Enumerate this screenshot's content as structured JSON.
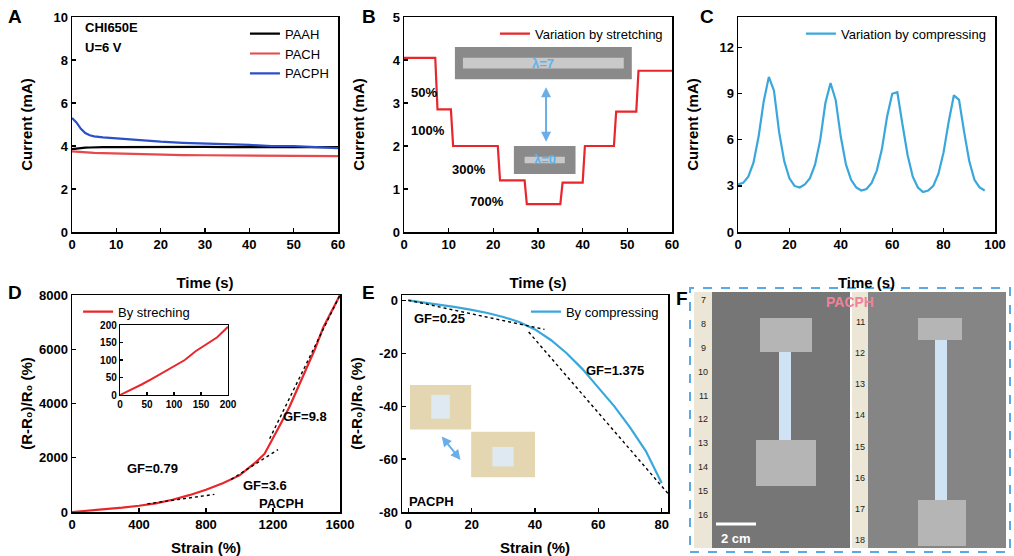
{
  "chart_data": [
    {
      "label": "A",
      "type": "line",
      "x_label": "Time (s)",
      "y_label": "Current (mA)",
      "annotations": [
        "CHI650E",
        "U=6 V"
      ],
      "x": [
        0,
        1,
        2,
        3,
        4,
        5,
        7,
        10,
        15,
        20,
        25,
        30,
        35,
        40,
        45,
        50,
        55,
        60
      ],
      "series": [
        {
          "name": "PAAH",
          "color": "#000000",
          "line_style": "solid",
          "values": [
            3.85,
            3.88,
            3.9,
            3.92,
            3.93,
            3.94,
            3.95,
            3.95,
            3.96,
            3.96,
            3.96,
            3.96,
            3.95,
            3.95,
            3.95,
            3.95,
            3.95,
            3.95
          ]
        },
        {
          "name": "PACH",
          "color": "#e8474b",
          "line_style": "solid",
          "values": [
            3.75,
            3.73,
            3.72,
            3.7,
            3.69,
            3.68,
            3.67,
            3.65,
            3.62,
            3.6,
            3.58,
            3.57,
            3.56,
            3.55,
            3.55,
            3.54,
            3.54,
            3.53
          ]
        },
        {
          "name": "PACPH",
          "color": "#2a4fc9",
          "line_style": "solid",
          "values": [
            5.3,
            5.1,
            4.8,
            4.6,
            4.5,
            4.45,
            4.4,
            4.35,
            4.25,
            4.2,
            4.15,
            4.12,
            4.1,
            4.05,
            4.0,
            4.0,
            3.95,
            3.9
          ]
        }
      ],
      "xlim": [
        0,
        60
      ],
      "xticks": [
        0,
        10,
        20,
        30,
        40,
        50,
        60
      ],
      "ylim": [
        0,
        10
      ],
      "yticks": [
        0,
        2,
        4,
        6,
        8,
        10
      ],
      "legend": "upper right",
      "grid": false
    },
    {
      "label": "B",
      "type": "line",
      "x_label": "Time (s)",
      "y_label": "Current (mA)",
      "annotations": [
        "50%",
        "100%",
        "300%",
        "700%"
      ],
      "inset_texts": [
        "λ=7",
        "λ=0"
      ],
      "x": [
        0,
        7,
        7.5,
        10.5,
        11,
        21,
        21.5,
        27,
        27.5,
        35,
        35.5,
        40,
        40.5,
        47,
        47.5,
        52,
        52.5,
        60
      ],
      "series": [
        {
          "name": "Variation by stretching",
          "color": "#e8262b",
          "line_style": "solid",
          "values": [
            4.05,
            4.05,
            2.85,
            2.85,
            2.0,
            2.0,
            1.2,
            1.2,
            0.65,
            0.65,
            1.15,
            1.15,
            2.0,
            2.0,
            2.8,
            2.8,
            3.75,
            3.75
          ]
        }
      ],
      "xlim": [
        0,
        60
      ],
      "xticks": [
        0,
        10,
        20,
        30,
        40,
        50,
        60
      ],
      "ylim": [
        0,
        5
      ],
      "yticks": [
        0,
        1,
        2,
        3,
        4,
        5
      ],
      "legend": "upper right",
      "grid": false
    },
    {
      "label": "C",
      "type": "line",
      "x_label": "Time (s)",
      "y_label": "Current (mA)",
      "x": [
        0,
        2,
        4,
        6,
        8,
        10,
        12,
        14,
        16,
        18,
        20,
        22,
        24,
        26,
        28,
        30,
        32,
        34,
        36,
        38,
        40,
        42,
        44,
        46,
        48,
        50,
        52,
        54,
        56,
        58,
        60,
        62,
        64,
        66,
        68,
        70,
        72,
        74,
        76,
        78,
        80,
        82,
        84,
        86,
        88,
        90,
        92,
        94,
        96
      ],
      "series": [
        {
          "name": "Variation by compressing",
          "color": "#3aa7dc",
          "line_style": "solid",
          "values": [
            3.1,
            3.2,
            3.6,
            4.5,
            6.2,
            8.5,
            10.1,
            9.2,
            6.5,
            4.6,
            3.5,
            3.0,
            2.9,
            3.1,
            3.5,
            4.4,
            6.0,
            8.4,
            9.7,
            8.6,
            6.2,
            4.4,
            3.4,
            2.9,
            2.7,
            2.8,
            3.2,
            4.0,
            5.4,
            7.5,
            9.0,
            9.1,
            7.0,
            5.0,
            3.6,
            2.9,
            2.6,
            2.7,
            3.0,
            3.8,
            5.2,
            7.2,
            8.9,
            8.6,
            6.5,
            4.6,
            3.4,
            2.9,
            2.7
          ]
        }
      ],
      "xlim": [
        0,
        100
      ],
      "xticks": [
        0,
        20,
        40,
        60,
        80,
        100
      ],
      "ylim": [
        0,
        14
      ],
      "yticks": [
        0,
        3,
        6,
        9,
        12
      ],
      "legend": "upper right",
      "grid": false
    },
    {
      "label": "D",
      "type": "line",
      "x_label": "Strain (%)",
      "y_label": "(R-R₀)/R₀ (%)",
      "annotations": [
        "GF=0.79",
        "GF=3.6",
        "GF=9.8",
        "PACPH"
      ],
      "x": [
        0,
        50,
        100,
        150,
        200,
        300,
        400,
        500,
        600,
        700,
        800,
        900,
        1000,
        1100,
        1150,
        1200,
        1250,
        1300,
        1350,
        1400,
        1450,
        1500,
        1550,
        1600
      ],
      "series": [
        {
          "name": "By streching",
          "color": "#e8262b",
          "line_style": "solid",
          "values": [
            0,
            25,
            55,
            85,
            110,
            160,
            230,
            320,
            450,
            620,
            820,
            1060,
            1350,
            1850,
            2150,
            2700,
            3300,
            3900,
            4600,
            5300,
            6000,
            6800,
            7400,
            8000
          ]
        },
        {
          "x": [
            450,
            850
          ],
          "values": [
            300,
            650
          ],
          "color": "#000000",
          "line_style": "dotted"
        },
        {
          "x": [
            950,
            1230
          ],
          "values": [
            1200,
            2300
          ],
          "color": "#000000",
          "line_style": "dotted"
        },
        {
          "x": [
            1180,
            1600
          ],
          "values": [
            2700,
            8000
          ],
          "color": "#000000",
          "line_style": "dotted"
        }
      ],
      "xlim": [
        0,
        1600
      ],
      "xticks": [
        0,
        400,
        800,
        1200,
        1600
      ],
      "ylim": [
        0,
        8000
      ],
      "yticks": [
        0,
        2000,
        4000,
        6000,
        8000
      ],
      "legend": "upper left",
      "grid": false,
      "inset": {
        "type": "line",
        "color": "#e8262b",
        "x": [
          0,
          20,
          40,
          60,
          80,
          100,
          120,
          140,
          160,
          180,
          200
        ],
        "values": [
          0,
          14,
          30,
          47,
          64,
          82,
          100,
          125,
          145,
          165,
          195
        ],
        "xlim": [
          0,
          200
        ],
        "xticks": [
          0,
          50,
          100,
          150,
          200
        ],
        "ylim": [
          0,
          200
        ],
        "yticks": [
          0,
          50,
          100,
          150,
          200
        ]
      }
    },
    {
      "label": "E",
      "type": "line",
      "x_label": "Strain (%)",
      "y_label": "(R-R₀)/R₀ (%)",
      "annotations": [
        "GF=0.25",
        "GF=1.375",
        "PACPH"
      ],
      "x": [
        0,
        5,
        10,
        15,
        20,
        25,
        30,
        35,
        40,
        45,
        50,
        55,
        60,
        65,
        70,
        75,
        80
      ],
      "series": [
        {
          "name": "By compressing",
          "color": "#3aa7dc",
          "line_style": "solid",
          "values": [
            0,
            -0.8,
            -1.6,
            -2.6,
            -3.6,
            -4.8,
            -6.3,
            -8.2,
            -11,
            -15,
            -20,
            -26,
            -33,
            -40,
            -48,
            -57,
            -69
          ]
        },
        {
          "x": [
            0,
            43
          ],
          "values": [
            0,
            -11
          ],
          "color": "#000000",
          "line_style": "dotted"
        },
        {
          "x": [
            38,
            82
          ],
          "values": [
            -12,
            -73
          ],
          "color": "#000000",
          "line_style": "dotted"
        }
      ],
      "xlim": [
        -2,
        82
      ],
      "xticks": [
        0,
        20,
        40,
        60,
        80
      ],
      "ylim": [
        -80,
        2
      ],
      "yticks": [
        -80,
        -60,
        -40,
        -20,
        0
      ],
      "legend": "upper right",
      "grid": false
    },
    {
      "label": "F",
      "type": "image",
      "annotations": [
        "PACPH",
        "2 cm"
      ],
      "rulers": [
        [
          7,
          8,
          9,
          10,
          11,
          12,
          13,
          14,
          15,
          16
        ],
        [
          11,
          12,
          13,
          14,
          15,
          16,
          17,
          18
        ]
      ]
    }
  ]
}
